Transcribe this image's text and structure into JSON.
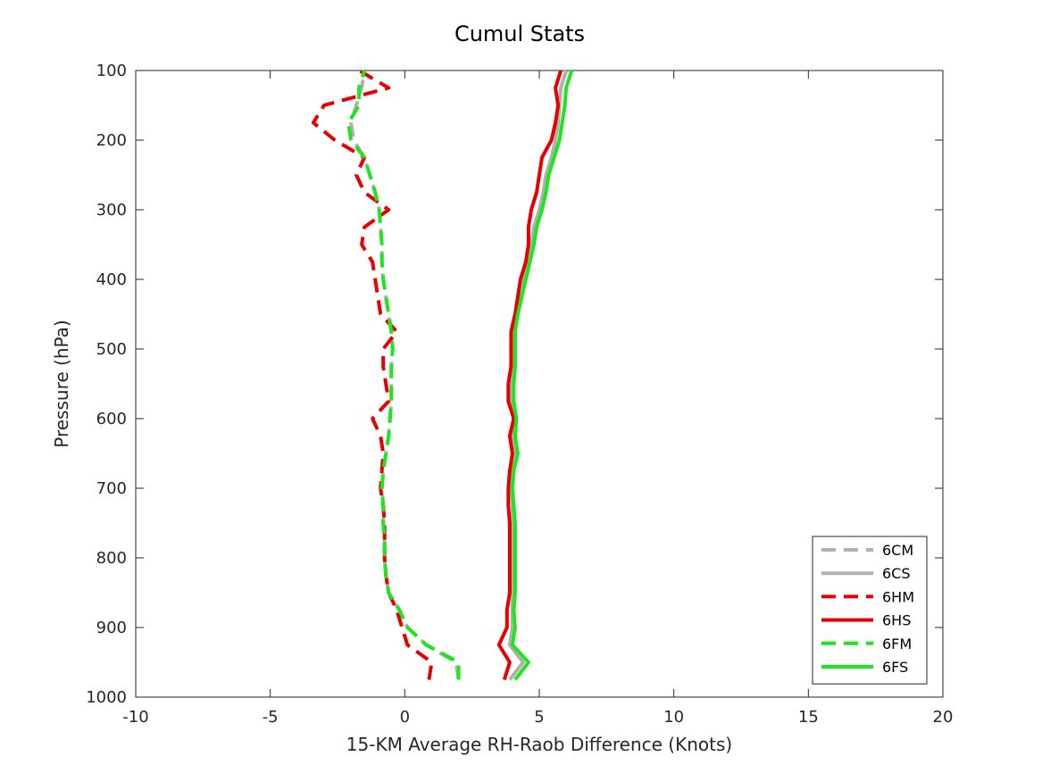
{
  "chart_data": {
    "type": "line",
    "title": "Cumul Stats",
    "xlabel": "15-KM Average RH-Raob Difference (Knots)",
    "ylabel": "Pressure (hPa)",
    "xlim": [
      -10,
      20
    ],
    "ylim": [
      100,
      1000
    ],
    "y_reversed": true,
    "xticks": [
      -10,
      -5,
      0,
      5,
      10,
      15,
      20
    ],
    "yticks": [
      100,
      200,
      300,
      400,
      500,
      600,
      700,
      800,
      900,
      1000
    ],
    "grid": false,
    "legend_position": "bottom-right",
    "y": [
      975,
      950,
      925,
      900,
      875,
      850,
      825,
      800,
      775,
      750,
      725,
      700,
      675,
      650,
      625,
      600,
      575,
      550,
      525,
      500,
      475,
      450,
      425,
      400,
      375,
      350,
      325,
      300,
      275,
      250,
      225,
      200,
      175,
      150,
      125,
      100
    ],
    "series": [
      {
        "name": "6CM",
        "color": "#b0b0b0",
        "dash": true,
        "x": [
          2.0,
          1.9,
          0.8,
          0.1,
          -0.2,
          -0.6,
          -0.7,
          -0.75,
          -0.75,
          -0.8,
          -0.8,
          -0.85,
          -0.8,
          -0.7,
          -0.6,
          -0.55,
          -0.5,
          -0.5,
          -0.5,
          -0.45,
          -0.5,
          -0.6,
          -0.7,
          -0.8,
          -0.85,
          -0.85,
          -0.9,
          -0.95,
          -1.1,
          -1.3,
          -1.5,
          -1.9,
          -2.0,
          -1.8,
          -1.6,
          -1.5
        ]
      },
      {
        "name": "6CS",
        "color": "#b0b0b0",
        "dash": false,
        "x": [
          3.9,
          4.4,
          3.9,
          4.0,
          4.0,
          4.0,
          4.0,
          4.0,
          4.0,
          4.0,
          4.0,
          3.95,
          4.0,
          4.1,
          4.0,
          4.05,
          3.95,
          3.95,
          4.0,
          4.0,
          4.05,
          4.1,
          4.25,
          4.4,
          4.55,
          4.7,
          4.8,
          5.0,
          5.15,
          5.25,
          5.45,
          5.6,
          5.7,
          5.75,
          5.8,
          6.0
        ]
      },
      {
        "name": "6HM",
        "color": "#e60000",
        "dash": true,
        "x": [
          0.9,
          1.0,
          0.1,
          -0.1,
          -0.3,
          -0.6,
          -0.7,
          -0.75,
          -0.75,
          -0.75,
          -0.8,
          -0.9,
          -0.85,
          -0.8,
          -0.9,
          -1.2,
          -0.6,
          -0.7,
          -0.8,
          -0.8,
          -0.3,
          -0.9,
          -1.0,
          -1.1,
          -1.2,
          -1.6,
          -1.5,
          -0.6,
          -1.5,
          -1.8,
          -1.5,
          -2.6,
          -3.4,
          -3.0,
          -0.6,
          -1.7
        ]
      },
      {
        "name": "6HS",
        "color": "#e60000",
        "dash": false,
        "x": [
          3.7,
          3.9,
          3.5,
          3.8,
          3.8,
          3.9,
          3.9,
          3.9,
          3.9,
          3.9,
          3.85,
          3.85,
          3.9,
          4.0,
          3.9,
          4.05,
          3.85,
          3.85,
          3.95,
          3.95,
          3.95,
          4.1,
          4.2,
          4.3,
          4.5,
          4.6,
          4.6,
          4.7,
          4.9,
          5.0,
          5.1,
          5.45,
          5.6,
          5.7,
          5.6,
          5.8
        ]
      },
      {
        "name": "6FM",
        "color": "#1fe51f",
        "dash": true,
        "x": [
          2.0,
          2.0,
          0.8,
          0.1,
          -0.2,
          -0.6,
          -0.7,
          -0.75,
          -0.75,
          -0.8,
          -0.8,
          -0.85,
          -0.8,
          -0.7,
          -0.6,
          -0.55,
          -0.5,
          -0.5,
          -0.5,
          -0.45,
          -0.5,
          -0.6,
          -0.7,
          -0.8,
          -0.85,
          -0.85,
          -0.9,
          -0.95,
          -1.1,
          -1.3,
          -1.5,
          -2.0,
          -2.1,
          -1.7,
          -1.7,
          -1.5
        ]
      },
      {
        "name": "6FS",
        "color": "#1fe51f",
        "dash": false,
        "x": [
          4.1,
          4.6,
          4.0,
          4.1,
          4.05,
          4.1,
          4.1,
          4.1,
          4.1,
          4.1,
          4.05,
          4.0,
          4.05,
          4.2,
          4.1,
          4.15,
          4.05,
          4.05,
          4.1,
          4.1,
          4.1,
          4.2,
          4.35,
          4.5,
          4.65,
          4.8,
          4.9,
          5.1,
          5.25,
          5.35,
          5.55,
          5.75,
          5.85,
          5.95,
          6.0,
          6.2
        ]
      }
    ]
  }
}
